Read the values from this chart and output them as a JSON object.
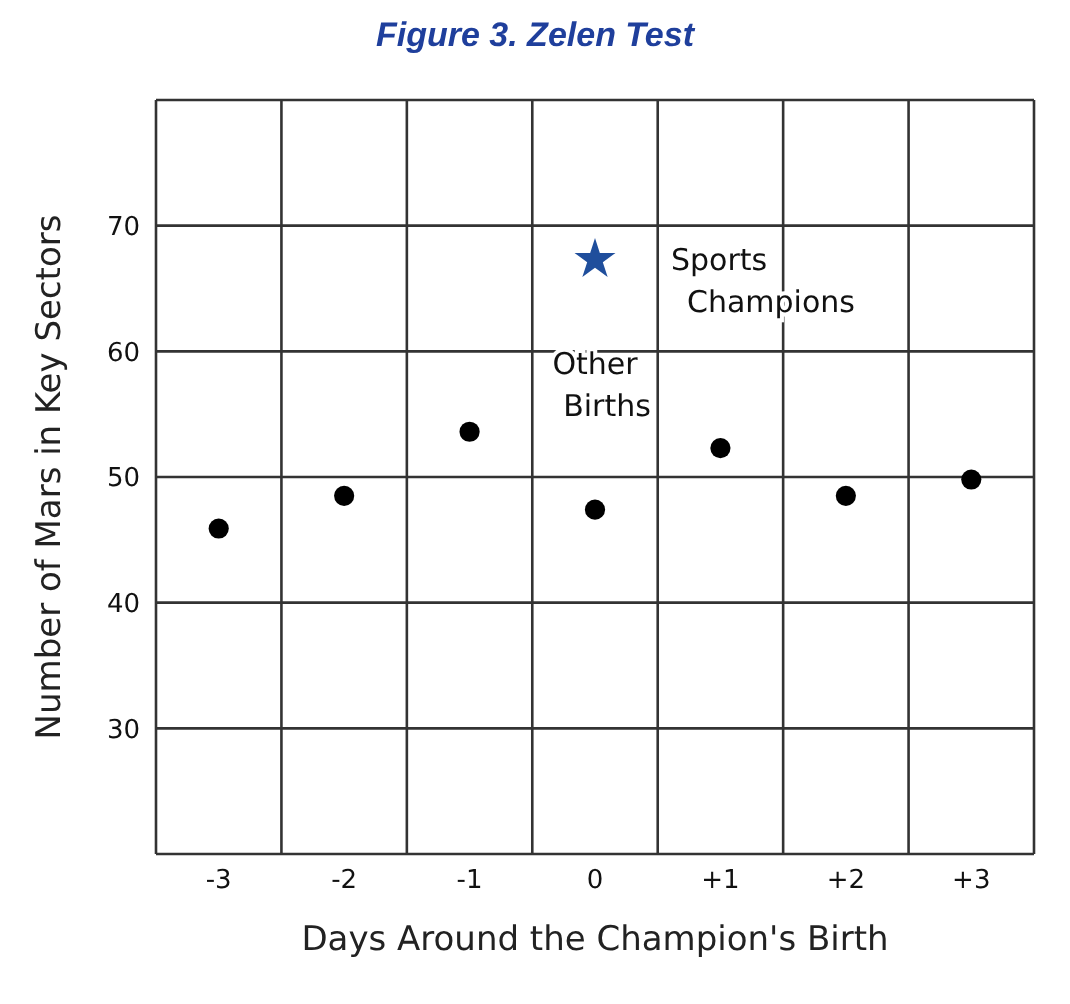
{
  "chart_data": {
    "type": "scatter",
    "title": "Figure 3. Zelen Test",
    "xlabel": "Days Around the Champion's Birth",
    "ylabel": "Number of Mars in Key Sectors",
    "categories": [
      "-3",
      "-2",
      "-1",
      "0",
      "+1",
      "+2",
      "+3"
    ],
    "series": [
      {
        "name": "Other Births",
        "color": "#000000",
        "marker": "circle",
        "values": [
          45.9,
          48.5,
          53.6,
          47.4,
          52.3,
          48.5,
          49.8
        ]
      },
      {
        "name": "Sports Champions",
        "color": "#1f4e9c",
        "marker": "star",
        "x": [
          "0"
        ],
        "values": [
          67.3
        ]
      }
    ],
    "ylim": [
      20,
      80
    ],
    "yticks": [
      {
        "value": 20,
        "label": null
      },
      30,
      40,
      50,
      60,
      70,
      {
        "value": 80,
        "label": null
      }
    ],
    "grid": true
  }
}
